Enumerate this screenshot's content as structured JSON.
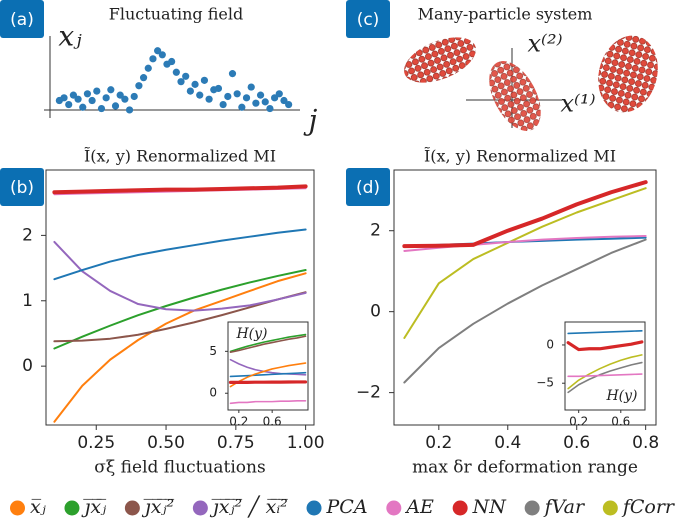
{
  "chart_data": [
    {
      "type": "scatter",
      "panel": "(a)",
      "title": "Fluctuating field",
      "xlabel": "j",
      "ylabel": "xⱼ",
      "color": "#2c7bb6",
      "x": [
        1,
        2,
        3,
        4,
        5,
        6,
        7,
        8,
        9,
        10,
        11,
        12,
        13,
        14,
        15,
        16,
        17,
        18,
        19,
        20,
        21,
        22,
        23,
        24,
        25,
        26,
        27,
        28,
        29,
        30,
        31,
        32,
        33,
        34,
        35,
        36,
        37,
        38,
        39,
        40,
        41,
        42,
        43,
        44,
        45,
        46,
        47,
        48,
        49,
        50
      ],
      "values": [
        0.1,
        0.3,
        -0.2,
        0.5,
        0.2,
        -0.4,
        0.6,
        0.1,
        0.8,
        -0.5,
        0.3,
        0.9,
        -0.3,
        0.5,
        0.2,
        -0.6,
        0.4,
        1.2,
        1.8,
        2.5,
        3.2,
        3.8,
        3.5,
        2.8,
        3.0,
        2.2,
        1.5,
        1.9,
        0.8,
        1.3,
        0.5,
        1.6,
        0.2,
        0.9,
        1.0,
        -0.2,
        0.4,
        2.1,
        0.6,
        -0.4,
        0.3,
        1.1,
        -0.1,
        0.5,
        0.0,
        -0.5,
        0.3,
        0.6,
        0.1,
        -0.2
      ],
      "xlim": [
        -1,
        52
      ],
      "ylim": [
        -1.2,
        4.6
      ]
    },
    {
      "type": "illustration",
      "panel": "(c)",
      "title": "Many-particle system",
      "xlabel": "x⁽¹⁾",
      "ylabel": "x⁽²⁾"
    },
    {
      "type": "line",
      "panel": "(b)",
      "title": "Ĩ(x, y) Renormalized MI",
      "xlabel": "σξ  field fluctuations",
      "x": [
        0.1,
        0.2,
        0.3,
        0.4,
        0.5,
        0.6,
        0.7,
        0.8,
        0.9,
        1.0
      ],
      "xlim": [
        0.07,
        1.03
      ],
      "ylim": [
        -0.9,
        3.0
      ],
      "xticks": [
        0.25,
        {
          "value": 0.5,
          "label": "0.50"
        },
        0.75,
        {
          "value": 1.0,
          "label": "1.00"
        }
      ],
      "yticks": [
        0,
        1,
        2
      ],
      "series": [
        {
          "name": "x̅ⱼ",
          "color": "#ff7f0e",
          "values": [
            -0.85,
            -0.3,
            0.1,
            0.4,
            0.65,
            0.85,
            1.0,
            1.15,
            1.3,
            1.42
          ]
        },
        {
          "name": "j̅x̅ⱼ̅",
          "color": "#2ca02c",
          "values": [
            0.27,
            0.45,
            0.62,
            0.78,
            0.92,
            1.05,
            1.17,
            1.28,
            1.38,
            1.47
          ]
        },
        {
          "name": "j̅x̅ⱼ̅²̅",
          "color": "#8c564b",
          "values": [
            0.38,
            0.39,
            0.42,
            0.48,
            0.57,
            0.67,
            0.78,
            0.9,
            1.02,
            1.13
          ]
        },
        {
          "name": "j̅x̅ⱼ̅²̅ ╱ x̅ᵢ̅²̅",
          "color": "#9467bd",
          "values": [
            1.9,
            1.45,
            1.15,
            0.95,
            0.87,
            0.85,
            0.88,
            0.93,
            1.02,
            1.12
          ]
        },
        {
          "name": "PCA",
          "color": "#1f77b4",
          "values": [
            1.33,
            1.47,
            1.6,
            1.7,
            1.78,
            1.85,
            1.92,
            1.98,
            2.04,
            2.09
          ]
        },
        {
          "name": "AE",
          "color": "#e377c2",
          "values": [
            2.63,
            2.64,
            2.65,
            2.66,
            2.67,
            2.68,
            2.69,
            2.7,
            2.71,
            2.72
          ]
        },
        {
          "name": "NN",
          "color": "#d62728",
          "values": [
            2.66,
            2.67,
            2.68,
            2.69,
            2.7,
            2.7,
            2.71,
            2.72,
            2.73,
            2.75
          ]
        }
      ]
    },
    {
      "type": "line",
      "ylabel": "H(y)",
      "x": [
        0.1,
        0.2,
        0.3,
        0.4,
        0.5,
        0.6,
        0.7,
        0.8,
        0.9,
        1.0
      ],
      "xlim": [
        0.07,
        1.03
      ],
      "ylim": [
        -2,
        8.5
      ],
      "xticks": [
        0.2,
        0.6
      ],
      "yticks": [
        0,
        5
      ],
      "series": [
        {
          "color": "#2ca02c",
          "values": [
            5.0,
            5.3,
            5.6,
            5.85,
            6.1,
            6.3,
            6.5,
            6.7,
            6.85,
            7.0
          ]
        },
        {
          "color": "#8c564b",
          "values": [
            4.9,
            5.1,
            5.35,
            5.6,
            5.85,
            6.05,
            6.25,
            6.45,
            6.6,
            6.8
          ]
        },
        {
          "color": "#9467bd",
          "values": [
            4.0,
            3.5,
            3.1,
            2.8,
            2.6,
            2.45,
            2.35,
            2.3,
            2.25,
            2.2
          ]
        },
        {
          "color": "#1f77b4",
          "values": [
            2.0,
            2.05,
            2.1,
            2.15,
            2.2,
            2.25,
            2.3,
            2.35,
            2.4,
            2.45
          ]
        },
        {
          "color": "#ff7f0e",
          "values": [
            0.8,
            1.4,
            1.9,
            2.3,
            2.6,
            2.9,
            3.1,
            3.3,
            3.45,
            3.6
          ]
        },
        {
          "color": "#d62728",
          "values": [
            1.3,
            1.3,
            1.3,
            1.32,
            1.32,
            1.33,
            1.33,
            1.34,
            1.35,
            1.35
          ]
        },
        {
          "color": "#e377c2",
          "values": [
            -1.2,
            -1.1,
            -1.1,
            -1.0,
            -1.0,
            -1.0,
            -0.95,
            -0.95,
            -0.9,
            -0.9
          ]
        }
      ]
    },
    {
      "type": "line",
      "panel": "(d)",
      "title": "Ĩ(x, y) Renormalized MI",
      "xlabel": "max δr  deformation range",
      "x": [
        0.1,
        0.2,
        0.3,
        0.4,
        0.5,
        0.6,
        0.7,
        0.8
      ],
      "xlim": [
        0.07,
        0.83
      ],
      "ylim": [
        -2.8,
        3.5
      ],
      "xticks": [
        0.2,
        0.4,
        0.6,
        0.8
      ],
      "yticks": [
        {
          "value": -2,
          "label": "−2"
        },
        0,
        2
      ],
      "series": [
        {
          "name": "fVar",
          "color": "#7f7f7f",
          "values": [
            -1.75,
            -0.9,
            -0.3,
            0.2,
            0.65,
            1.05,
            1.45,
            1.78
          ]
        },
        {
          "name": "fCorr",
          "color": "#bcbd22",
          "values": [
            -0.65,
            0.7,
            1.3,
            1.7,
            2.1,
            2.45,
            2.75,
            3.05
          ]
        },
        {
          "name": "PCA",
          "color": "#1f77b4",
          "values": [
            1.62,
            1.65,
            1.68,
            1.72,
            1.75,
            1.78,
            1.8,
            1.83
          ]
        },
        {
          "name": "AE",
          "color": "#e377c2",
          "values": [
            1.5,
            1.58,
            1.65,
            1.72,
            1.78,
            1.82,
            1.85,
            1.87
          ]
        },
        {
          "name": "NN",
          "color": "#d62728",
          "values": [
            1.62,
            1.63,
            1.65,
            2.0,
            2.3,
            2.65,
            2.95,
            3.2
          ]
        }
      ]
    },
    {
      "type": "line",
      "ylabel": "H(y)",
      "x": [
        0.1,
        0.2,
        0.3,
        0.4,
        0.5,
        0.6,
        0.7,
        0.8
      ],
      "xlim": [
        0.07,
        0.83
      ],
      "ylim": [
        -8.5,
        3
      ],
      "xticks": [
        0.2,
        0.6
      ],
      "yticks": [
        {
          "value": -5,
          "label": "−5"
        },
        0
      ],
      "series": [
        {
          "color": "#1f77b4",
          "values": [
            1.5,
            1.55,
            1.6,
            1.65,
            1.7,
            1.75,
            1.8,
            1.85
          ]
        },
        {
          "color": "#d62728",
          "values": [
            0.3,
            -0.6,
            -0.5,
            -0.5,
            -0.3,
            -0.1,
            0.1,
            0.4
          ]
        },
        {
          "color": "#bcbd22",
          "values": [
            -5.7,
            -4.6,
            -3.8,
            -3.1,
            -2.5,
            -2.0,
            -1.6,
            -1.3
          ]
        },
        {
          "color": "#7f7f7f",
          "values": [
            -6.2,
            -5.2,
            -4.5,
            -3.9,
            -3.4,
            -3.0,
            -2.6,
            -2.3
          ]
        },
        {
          "color": "#e377c2",
          "values": [
            -4.1,
            -4.1,
            -4.05,
            -4.0,
            -3.95,
            -3.9,
            -3.85,
            -3.8
          ]
        }
      ]
    }
  ]
}
